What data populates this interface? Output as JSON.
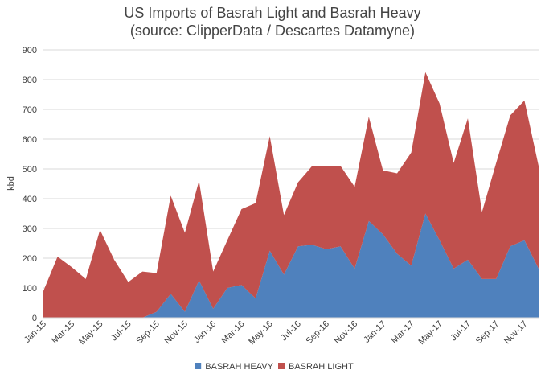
{
  "chart_data": {
    "type": "area",
    "stacked": true,
    "title": "US Imports of Basrah Light and Basrah Heavy",
    "subtitle": "(source: ClipperData / Descartes Datamyne)",
    "xlabel": "",
    "ylabel": "kbd",
    "ylim": [
      0,
      900
    ],
    "yticks": [
      "0",
      "100",
      "200",
      "300",
      "400",
      "500",
      "600",
      "700",
      "800",
      "900"
    ],
    "grid": true,
    "legend_position": "bottom",
    "x": [
      "Jan-15",
      "Feb-15",
      "Mar-15",
      "Apr-15",
      "May-15",
      "Jun-15",
      "Jul-15",
      "Aug-15",
      "Sep-15",
      "Oct-15",
      "Nov-15",
      "Dec-15",
      "Jan-16",
      "Feb-16",
      "Mar-16",
      "Apr-16",
      "May-16",
      "Jun-16",
      "Jul-16",
      "Aug-16",
      "Sep-16",
      "Oct-16",
      "Nov-16",
      "Dec-16",
      "Jan-17",
      "Feb-17",
      "Mar-17",
      "Apr-17",
      "May-17",
      "Jun-17",
      "Jul-17",
      "Aug-17",
      "Sep-17",
      "Oct-17",
      "Nov-17",
      "Dec-17"
    ],
    "xtick_labels": [
      "Jan-15",
      "Mar-15",
      "May-15",
      "Jul-15",
      "Sep-15",
      "Nov-15",
      "Jan-16",
      "Mar-16",
      "May-16",
      "Jul-16",
      "Sep-16",
      "Nov-16",
      "Jan-17",
      "Mar-17",
      "May-17",
      "Jul-17",
      "Sep-17",
      "Nov-17"
    ],
    "series": [
      {
        "name": "BASRAH HEAVY",
        "color": "#4f81bd",
        "values": [
          0,
          0,
          0,
          0,
          0,
          0,
          0,
          0,
          20,
          80,
          20,
          125,
          30,
          100,
          110,
          65,
          225,
          145,
          240,
          245,
          230,
          240,
          165,
          325,
          280,
          215,
          175,
          350,
          260,
          165,
          195,
          130,
          130,
          240,
          260,
          165
        ]
      },
      {
        "name": "BASRAH LIGHT",
        "color": "#c0504d",
        "values": [
          90,
          205,
          170,
          130,
          295,
          195,
          120,
          155,
          130,
          330,
          265,
          335,
          125,
          160,
          255,
          320,
          385,
          200,
          215,
          265,
          280,
          270,
          275,
          350,
          215,
          270,
          380,
          475,
          460,
          355,
          475,
          225,
          390,
          440,
          470,
          345
        ]
      }
    ]
  }
}
